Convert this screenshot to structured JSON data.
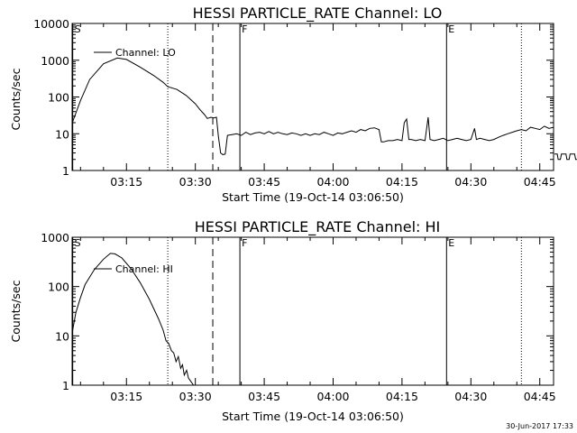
{
  "chart_data": [
    {
      "type": "line",
      "title": "HESSI PARTICLE_RATE Channel: LO",
      "xlabel": "Start Time (19-Oct-14 03:06:50)",
      "ylabel": "Counts/sec",
      "yscale": "log",
      "ylim": [
        1,
        10000
      ],
      "xlim_minutes": [
        3.17,
        48.0
      ],
      "xticks": [
        {
          "m": 15,
          "label": "03:15"
        },
        {
          "m": 30,
          "label": "03:30"
        },
        {
          "m": 45,
          "label": "03:45"
        },
        {
          "m": 60,
          "label": "04:00"
        },
        {
          "m": 75,
          "label": "04:15"
        },
        {
          "m": 90,
          "label": "04:30"
        },
        {
          "m": 105,
          "label": "04:45"
        }
      ],
      "yticks": [
        {
          "v": 1,
          "label": "1"
        },
        {
          "v": 10,
          "label": "10"
        },
        {
          "v": 100,
          "label": "100"
        },
        {
          "v": 1000,
          "label": "1000"
        },
        {
          "v": 10000,
          "label": "10000"
        }
      ],
      "legend": {
        "label": "Channel: LO",
        "placement": "top-left"
      },
      "markers": [
        {
          "m": 3.3,
          "style": "solid",
          "label": "S"
        },
        {
          "m": 24.0,
          "style": "dotted",
          "label": ""
        },
        {
          "m": 33.8,
          "style": "dashed",
          "label": ""
        },
        {
          "m": 39.7,
          "style": "solid",
          "label": "F"
        },
        {
          "m": 84.7,
          "style": "solid",
          "label": "E"
        },
        {
          "m": 101.0,
          "style": "dotted",
          "label": ""
        }
      ],
      "series": [
        {
          "name": "Channel: LO",
          "segments": [
            [
              [
                3.2,
                20
              ],
              [
                5,
                80
              ],
              [
                7,
                300
              ],
              [
                10,
                800
              ],
              [
                13,
                1150
              ],
              [
                15,
                1050
              ],
              [
                18,
                650
              ],
              [
                21,
                380
              ],
              [
                23,
                250
              ],
              [
                24,
                190
              ],
              [
                26,
                160
              ],
              [
                28,
                110
              ],
              [
                30,
                65
              ],
              [
                31,
                45
              ],
              [
                32,
                33
              ],
              [
                32.6,
                26
              ],
              [
                33.4,
                28
              ],
              [
                34,
                27
              ],
              [
                34.6,
                28
              ],
              [
                35,
                9
              ],
              [
                35.5,
                3
              ],
              [
                36,
                2.7
              ],
              [
                36.5,
                2.8
              ],
              [
                37,
                9
              ],
              [
                38,
                9.5
              ],
              [
                39,
                10
              ],
              [
                40,
                9
              ],
              [
                41,
                11
              ],
              [
                42,
                9.5
              ],
              [
                43,
                10.5
              ],
              [
                44,
                11
              ],
              [
                45,
                10
              ],
              [
                46,
                11.5
              ],
              [
                47,
                10
              ],
              [
                48,
                11
              ],
              [
                49,
                10
              ],
              [
                50,
                9.5
              ],
              [
                51,
                10.5
              ],
              [
                52,
                10
              ],
              [
                53,
                9
              ],
              [
                54,
                10
              ],
              [
                55,
                9
              ],
              [
                56,
                10
              ],
              [
                57,
                9.5
              ],
              [
                58,
                11
              ],
              [
                59,
                10
              ],
              [
                60,
                9
              ],
              [
                61,
                10.5
              ],
              [
                62,
                10
              ],
              [
                63,
                11
              ],
              [
                64,
                12
              ],
              [
                65,
                11
              ],
              [
                66,
                13
              ],
              [
                67,
                12
              ],
              [
                68,
                14
              ],
              [
                69,
                14.5
              ],
              [
                70,
                13
              ],
              [
                70.5,
                6
              ],
              [
                71,
                6
              ],
              [
                72,
                6.5
              ],
              [
                73,
                6.5
              ],
              [
                74,
                7
              ],
              [
                75,
                6.5
              ],
              [
                75.5,
                20
              ],
              [
                76,
                25
              ],
              [
                76.5,
                7
              ],
              [
                77,
                7
              ],
              [
                78,
                6.5
              ],
              [
                79,
                7
              ],
              [
                80,
                6.5
              ],
              [
                80.7,
                28
              ],
              [
                81.1,
                7
              ],
              [
                82,
                6.5
              ],
              [
                83,
                7
              ],
              [
                84,
                7.5
              ],
              [
                85,
                6.5
              ],
              [
                86,
                7
              ],
              [
                87,
                7.5
              ],
              [
                88,
                7
              ],
              [
                89,
                6.5
              ],
              [
                90,
                7
              ],
              [
                90.8,
                14
              ],
              [
                91.2,
                7
              ],
              [
                92,
                7.5
              ],
              [
                93,
                7
              ],
              [
                94,
                6.5
              ],
              [
                95,
                7
              ],
              [
                96,
                8
              ],
              [
                97,
                9
              ],
              [
                98,
                10
              ],
              [
                99,
                11
              ],
              [
                100,
                12
              ],
              [
                101,
                13
              ],
              [
                102,
                12
              ],
              [
                103,
                15
              ],
              [
                104,
                14
              ],
              [
                105,
                13
              ],
              [
                106,
                16
              ],
              [
                107,
                14
              ],
              [
                108,
                15
              ]
            ],
            [
              [
                108.2,
                2.8
              ],
              [
                108.8,
                2.8
              ],
              [
                109.0,
                2.0
              ],
              [
                109.5,
                2.0
              ],
              [
                109.7,
                2.8
              ],
              [
                110.7,
                2.8
              ],
              [
                110.9,
                2.0
              ],
              [
                111.4,
                2.0
              ],
              [
                111.6,
                2.8
              ],
              [
                112.6,
                2.8
              ],
              [
                112.8,
                2.0
              ],
              [
                113.3,
                2.0
              ],
              [
                113.5,
                2.8
              ],
              [
                114.5,
                2.8
              ],
              [
                114.7,
                2.0
              ],
              [
                115.2,
                2.0
              ],
              [
                115.4,
                2.8
              ],
              [
                116.4,
                2.8
              ],
              [
                116.6,
                2.0
              ],
              [
                117.1,
                2.0
              ],
              [
                117.3,
                2.8
              ],
              [
                118.3,
                2.8
              ],
              [
                118.5,
                2.0
              ],
              [
                119.0,
                2.0
              ],
              [
                119.2,
                2.8
              ],
              [
                120.2,
                2.8
              ],
              [
                120.4,
                2.0
              ],
              [
                120.9,
                2.0
              ],
              [
                121.1,
                2.8
              ],
              [
                122.5,
                2.8
              ],
              [
                122.7,
                2.0
              ],
              [
                123.2,
                2.0
              ],
              [
                123.4,
                2.8
              ],
              [
                124.6,
                2.8
              ],
              [
                124.8,
                2.0
              ],
              [
                125.3,
                2.0
              ],
              [
                125.5,
                2.8
              ],
              [
                127.3,
                2.8
              ],
              [
                127.5,
                2.0
              ],
              [
                128.0,
                2.0
              ],
              [
                128.2,
                2.8
              ],
              [
                129.5,
                2.8
              ]
            ]
          ]
        }
      ]
    },
    {
      "type": "line",
      "title": "HESSI PARTICLE_RATE Channel: HI",
      "xlabel": "Start Time (19-Oct-14 03:06:50)",
      "ylabel": "Counts/sec",
      "yscale": "log",
      "ylim": [
        1,
        1000
      ],
      "xticks": [
        {
          "m": 15,
          "label": "03:15"
        },
        {
          "m": 30,
          "label": "03:30"
        },
        {
          "m": 45,
          "label": "03:45"
        },
        {
          "m": 60,
          "label": "04:00"
        },
        {
          "m": 75,
          "label": "04:15"
        },
        {
          "m": 90,
          "label": "04:30"
        },
        {
          "m": 105,
          "label": "04:45"
        }
      ],
      "yticks": [
        {
          "v": 1,
          "label": "1"
        },
        {
          "v": 10,
          "label": "10"
        },
        {
          "v": 100,
          "label": "100"
        },
        {
          "v": 1000,
          "label": "1000"
        }
      ],
      "legend": {
        "label": "Channel: HI",
        "placement": "top-left"
      },
      "markers": [
        {
          "m": 3.3,
          "style": "solid",
          "label": "S"
        },
        {
          "m": 24.0,
          "style": "dotted",
          "label": ""
        },
        {
          "m": 33.8,
          "style": "dashed",
          "label": ""
        },
        {
          "m": 39.7,
          "style": "solid",
          "label": "F"
        },
        {
          "m": 84.7,
          "style": "solid",
          "label": "E"
        },
        {
          "m": 101.0,
          "style": "dotted",
          "label": ""
        }
      ],
      "series": [
        {
          "name": "Channel: HI",
          "segments": [
            [
              [
                3.2,
                12
              ],
              [
                4,
                30
              ],
              [
                5,
                60
              ],
              [
                6,
                110
              ],
              [
                8,
                220
              ],
              [
                10,
                360
              ],
              [
                11.5,
                470
              ],
              [
                12.5,
                460
              ],
              [
                14,
                380
              ],
              [
                16,
                230
              ],
              [
                18,
                120
              ],
              [
                20,
                55
              ],
              [
                22,
                22
              ],
              [
                23,
                13
              ],
              [
                23.6,
                8
              ],
              [
                24.2,
                7
              ],
              [
                24.8,
                5
              ],
              [
                25.3,
                4.5
              ],
              [
                25.8,
                3
              ],
              [
                26.3,
                3.8
              ],
              [
                26.8,
                2.2
              ],
              [
                27.2,
                2.6
              ],
              [
                27.6,
                1.6
              ],
              [
                28.1,
                2.0
              ],
              [
                28.5,
                1.4
              ],
              [
                29,
                1.2
              ],
              [
                29.6,
                1.0
              ]
            ]
          ]
        }
      ]
    }
  ],
  "footer": {
    "stamp": "30-Jun-2017 17:33"
  }
}
